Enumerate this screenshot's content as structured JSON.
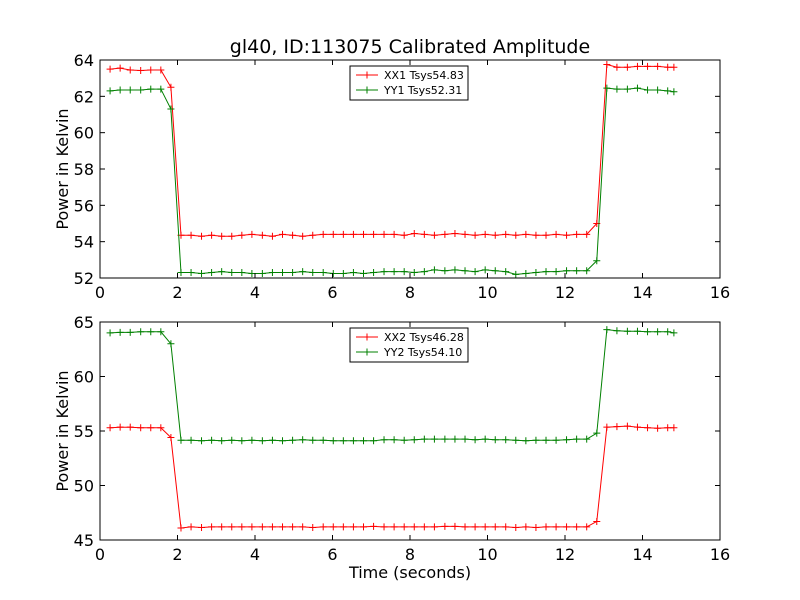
{
  "figure_title": "gl40, ID:113075 Calibrated Amplitude",
  "chart_data": [
    {
      "type": "line",
      "title": "gl40, ID:113075 Calibrated Amplitude",
      "xlabel": "",
      "ylabel": "Power in Kelvin",
      "xlim": [
        0,
        16
      ],
      "ylim": [
        52,
        64
      ],
      "xticks": [
        0,
        2,
        4,
        6,
        8,
        10,
        12,
        14,
        16
      ],
      "yticks": [
        52,
        54,
        56,
        58,
        60,
        62,
        64
      ],
      "grid": false,
      "legend_position": "top-center",
      "x": [
        0.26,
        0.52,
        0.78,
        1.05,
        1.31,
        1.57,
        1.83,
        2.09,
        2.35,
        2.62,
        2.88,
        3.14,
        3.4,
        3.66,
        3.92,
        4.19,
        4.45,
        4.71,
        4.97,
        5.23,
        5.49,
        5.76,
        6.02,
        6.28,
        6.54,
        6.8,
        7.06,
        7.33,
        7.59,
        7.85,
        8.11,
        8.37,
        8.63,
        8.9,
        9.16,
        9.42,
        9.68,
        9.94,
        10.2,
        10.47,
        10.73,
        10.99,
        11.25,
        11.51,
        11.77,
        12.04,
        12.3,
        12.56,
        12.82,
        13.08,
        13.34,
        13.61,
        13.87,
        14.13,
        14.39,
        14.65,
        14.81
      ],
      "series": [
        {
          "name": "XX1 Tsys54.83",
          "color": "#ff0000",
          "values": [
            63.5,
            63.55,
            63.45,
            63.42,
            63.45,
            63.45,
            62.5,
            54.35,
            54.35,
            54.3,
            54.35,
            54.3,
            54.3,
            54.35,
            54.4,
            54.35,
            54.3,
            54.4,
            54.35,
            54.3,
            54.35,
            54.4,
            54.4,
            54.4,
            54.4,
            54.4,
            54.4,
            54.4,
            54.4,
            54.35,
            54.45,
            54.4,
            54.35,
            54.4,
            54.45,
            54.4,
            54.35,
            54.4,
            54.35,
            54.4,
            54.35,
            54.4,
            54.35,
            54.35,
            54.4,
            54.35,
            54.4,
            54.4,
            55.0,
            63.75,
            63.6,
            63.6,
            63.65,
            63.65,
            63.65,
            63.6,
            63.6
          ]
        },
        {
          "name": "YY1 Tsys52.31",
          "color": "#008000",
          "values": [
            62.3,
            62.35,
            62.35,
            62.35,
            62.4,
            62.4,
            61.3,
            52.3,
            52.3,
            52.25,
            52.3,
            52.35,
            52.3,
            52.3,
            52.25,
            52.25,
            52.3,
            52.3,
            52.3,
            52.35,
            52.3,
            52.3,
            52.25,
            52.25,
            52.3,
            52.25,
            52.3,
            52.35,
            52.35,
            52.35,
            52.3,
            52.35,
            52.45,
            52.4,
            52.45,
            52.4,
            52.35,
            52.45,
            52.4,
            52.35,
            52.2,
            52.25,
            52.3,
            52.35,
            52.35,
            52.4,
            52.4,
            52.4,
            52.95,
            62.45,
            62.4,
            62.4,
            62.45,
            62.35,
            62.35,
            62.3,
            62.25
          ]
        }
      ]
    },
    {
      "type": "line",
      "title": "",
      "xlabel": "Time (seconds)",
      "ylabel": "Power in Kelvin",
      "xlim": [
        0,
        16
      ],
      "ylim": [
        45,
        65
      ],
      "xticks": [
        0,
        2,
        4,
        6,
        8,
        10,
        12,
        14,
        16
      ],
      "yticks": [
        45,
        50,
        55,
        60,
        65
      ],
      "grid": false,
      "legend_position": "top-center",
      "x": [
        0.26,
        0.52,
        0.78,
        1.05,
        1.31,
        1.57,
        1.83,
        2.09,
        2.35,
        2.62,
        2.88,
        3.14,
        3.4,
        3.66,
        3.92,
        4.19,
        4.45,
        4.71,
        4.97,
        5.23,
        5.49,
        5.76,
        6.02,
        6.28,
        6.54,
        6.8,
        7.06,
        7.33,
        7.59,
        7.85,
        8.11,
        8.37,
        8.63,
        8.9,
        9.16,
        9.42,
        9.68,
        9.94,
        10.2,
        10.47,
        10.73,
        10.99,
        11.25,
        11.51,
        11.77,
        12.04,
        12.3,
        12.56,
        12.82,
        13.08,
        13.34,
        13.61,
        13.87,
        14.13,
        14.39,
        14.65,
        14.81
      ],
      "series": [
        {
          "name": "XX2 Tsys46.28",
          "color": "#ff0000",
          "values": [
            55.3,
            55.35,
            55.35,
            55.3,
            55.3,
            55.3,
            54.4,
            46.1,
            46.2,
            46.15,
            46.2,
            46.2,
            46.2,
            46.2,
            46.2,
            46.2,
            46.2,
            46.2,
            46.2,
            46.2,
            46.15,
            46.2,
            46.2,
            46.2,
            46.2,
            46.2,
            46.25,
            46.2,
            46.2,
            46.2,
            46.2,
            46.2,
            46.2,
            46.25,
            46.25,
            46.2,
            46.2,
            46.2,
            46.2,
            46.2,
            46.15,
            46.2,
            46.15,
            46.2,
            46.2,
            46.2,
            46.2,
            46.2,
            46.7,
            55.35,
            55.4,
            55.45,
            55.35,
            55.3,
            55.25,
            55.3,
            55.3
          ]
        },
        {
          "name": "YY2 Tsys54.10",
          "color": "#008000",
          "values": [
            64.0,
            64.05,
            64.05,
            64.1,
            64.1,
            64.1,
            63.0,
            54.15,
            54.15,
            54.1,
            54.15,
            54.1,
            54.15,
            54.1,
            54.15,
            54.1,
            54.15,
            54.1,
            54.15,
            54.2,
            54.15,
            54.15,
            54.1,
            54.1,
            54.1,
            54.1,
            54.1,
            54.2,
            54.2,
            54.15,
            54.2,
            54.25,
            54.25,
            54.25,
            54.25,
            54.25,
            54.2,
            54.25,
            54.2,
            54.2,
            54.15,
            54.1,
            54.15,
            54.15,
            54.15,
            54.2,
            54.25,
            54.25,
            54.8,
            64.3,
            64.2,
            64.15,
            64.15,
            64.1,
            64.1,
            64.1,
            64.0
          ]
        }
      ]
    }
  ]
}
